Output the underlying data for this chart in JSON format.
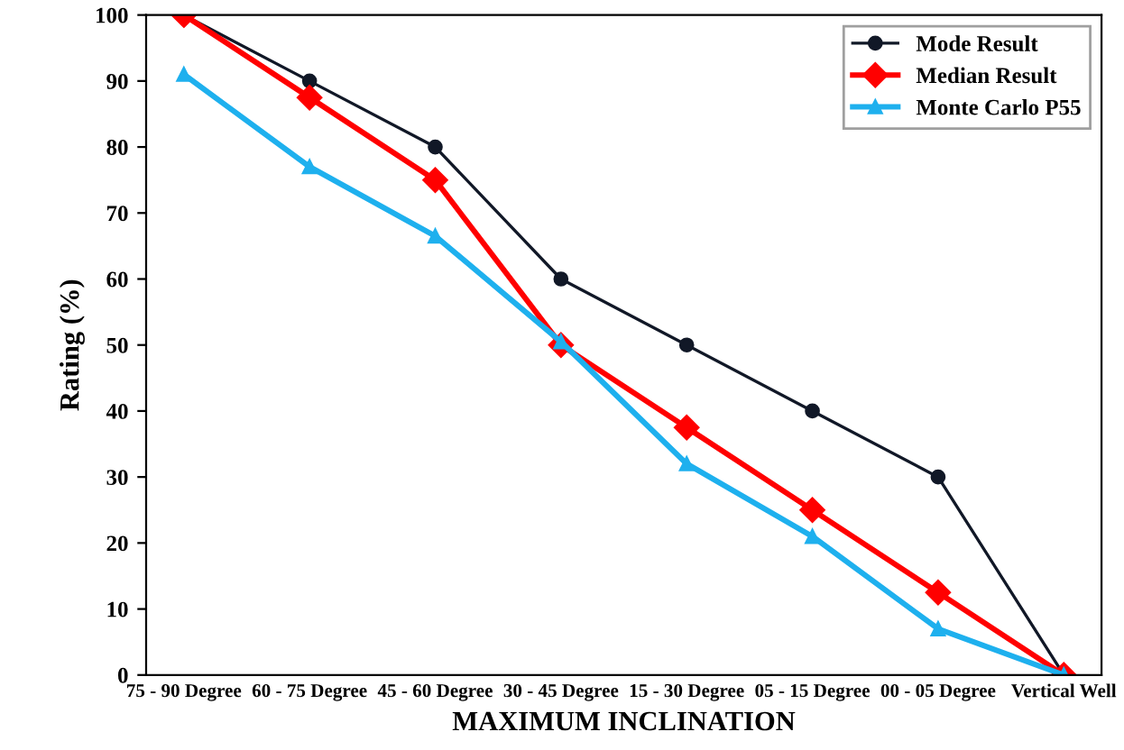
{
  "chart_data": {
    "type": "line",
    "ylabel": "Rating (%)",
    "xlabel": "MAXIMUM INCLINATION",
    "categories": [
      "75 - 90 Degree",
      "60 - 75 Degree",
      "45 - 60 Degree",
      "30 - 45 Degree",
      "15 - 30 Degree",
      "05 - 15 Degree",
      "00 - 05 Degree",
      "Vertical Well"
    ],
    "series": [
      {
        "name": "Mode Result",
        "color": "#111827",
        "marker": "circle",
        "values": [
          100,
          90,
          80,
          60,
          50,
          40,
          30,
          0
        ]
      },
      {
        "name": "Median Result",
        "color": "#ff0000",
        "marker": "diamond",
        "values": [
          100,
          87.5,
          75,
          50,
          37.5,
          25,
          12.5,
          0
        ]
      },
      {
        "name": "Monte Carlo P55",
        "color": "#1eb0ee",
        "marker": "triangle",
        "values": [
          91,
          77,
          66.5,
          50.5,
          32,
          21,
          7,
          0
        ]
      }
    ],
    "ylim": [
      0,
      100
    ],
    "yticks": [
      0,
      10,
      20,
      30,
      40,
      50,
      60,
      70,
      80,
      90,
      100
    ],
    "grid": false,
    "legend": "top right",
    "line_style": "solid"
  }
}
